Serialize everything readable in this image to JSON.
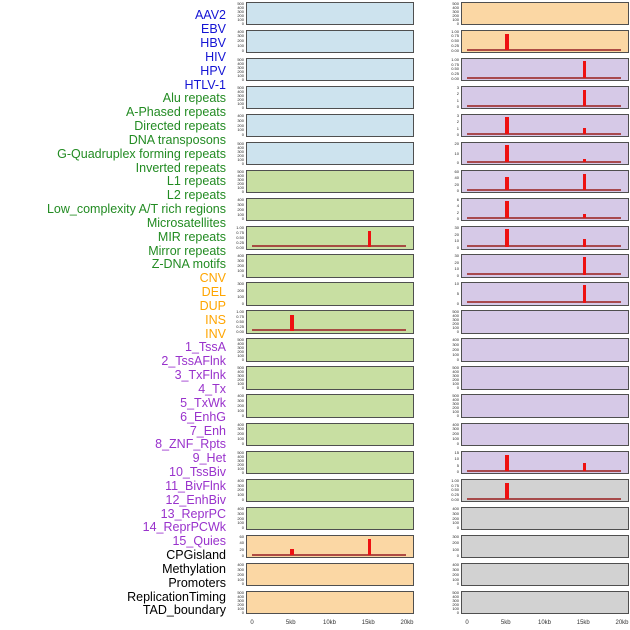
{
  "palette": {
    "label_blue": "#1414d4",
    "label_green": "#228B22",
    "label_orange": "#FFA500",
    "label_purple": "#9932CC",
    "label_black": "#000000",
    "panel_blue": "#cde3ee",
    "panel_green": "#c8dfa2",
    "panel_orange": "#fbd7a4",
    "panel_purple": "#d6c9e7",
    "panel_gray": "#d2d2d2",
    "spike_red": "#ee1111",
    "baseline_red": "#a03333",
    "border_gray": "#4f4f4f"
  },
  "chart_data": {
    "type": "area",
    "description": "Grid of 44 mini genomic density panels (2 columns x 22 rows), each spanning 0-20kb; red peaks mark enrichment at ~5kb and ~15kb",
    "x_ticks": [
      "0",
      "5kb",
      "10kb",
      "15kb",
      "20kb"
    ],
    "x_tick_kb": [
      0,
      5,
      10,
      15,
      20
    ],
    "x_range_kb": [
      0,
      20
    ],
    "row_labels": [
      {
        "text": "AAV2",
        "color": "blue"
      },
      {
        "text": "EBV",
        "color": "blue"
      },
      {
        "text": "HBV",
        "color": "blue"
      },
      {
        "text": "HIV",
        "color": "blue"
      },
      {
        "text": "HPV",
        "color": "blue"
      },
      {
        "text": "HTLV-1",
        "color": "blue"
      },
      {
        "text": "Alu repeats",
        "color": "green"
      },
      {
        "text": "A-Phased repeats",
        "color": "green"
      },
      {
        "text": "Directed repeats",
        "color": "green"
      },
      {
        "text": "DNA transposons",
        "color": "green"
      },
      {
        "text": "G-Quadruplex forming repeats",
        "color": "green"
      },
      {
        "text": "Inverted repeats",
        "color": "green"
      },
      {
        "text": "L1 repeats",
        "color": "green"
      },
      {
        "text": "L2 repeats",
        "color": "green"
      },
      {
        "text": "Low_complexity A/T rich regions",
        "color": "green"
      },
      {
        "text": "Microsatellites",
        "color": "green"
      },
      {
        "text": "MIR repeats",
        "color": "green"
      },
      {
        "text": "Mirror repeats",
        "color": "green"
      },
      {
        "text": "Z-DNA motifs",
        "color": "green"
      },
      {
        "text": "CNV",
        "color": "orange"
      },
      {
        "text": "DEL",
        "color": "orange"
      },
      {
        "text": "DUP",
        "color": "orange"
      },
      {
        "text": "INS",
        "color": "orange"
      },
      {
        "text": "INV",
        "color": "orange"
      },
      {
        "text": "1_TssA",
        "color": "purple"
      },
      {
        "text": "2_TssAFlnk",
        "color": "purple"
      },
      {
        "text": "3_TxFlnk",
        "color": "purple"
      },
      {
        "text": "4_Tx",
        "color": "purple"
      },
      {
        "text": "5_TxWk",
        "color": "purple"
      },
      {
        "text": "6_EnhG",
        "color": "purple"
      },
      {
        "text": "7_Enh",
        "color": "purple"
      },
      {
        "text": "8_ZNF_Rpts",
        "color": "purple"
      },
      {
        "text": "9_Het",
        "color": "purple"
      },
      {
        "text": "10_TssBiv",
        "color": "purple"
      },
      {
        "text": "11_BivFlnk",
        "color": "purple"
      },
      {
        "text": "12_EnhBiv",
        "color": "purple"
      },
      {
        "text": "13_ReprPC",
        "color": "purple"
      },
      {
        "text": "14_ReprPCWk",
        "color": "purple"
      },
      {
        "text": "15_Quies",
        "color": "purple"
      },
      {
        "text": "CPGisland",
        "color": "black"
      },
      {
        "text": "Methylation",
        "color": "black"
      },
      {
        "text": "Promoters",
        "color": "black"
      },
      {
        "text": "ReplicationTiming",
        "color": "black"
      },
      {
        "text": "TAD_boundary",
        "color": "black"
      }
    ],
    "columns": [
      {
        "name": "left-panel-column",
        "panels": [
          {
            "bg": "blue",
            "yticks": [
              "500",
              "400",
              "300",
              "200",
              "100",
              "0"
            ],
            "spikes": [],
            "baseline": false
          },
          {
            "bg": "blue",
            "yticks": [
              "400",
              "300",
              "200",
              "100",
              "0"
            ],
            "spikes": [],
            "baseline": false
          },
          {
            "bg": "blue",
            "yticks": [
              "500",
              "400",
              "300",
              "200",
              "100",
              "0"
            ],
            "spikes": [],
            "baseline": false
          },
          {
            "bg": "blue",
            "yticks": [
              "500",
              "400",
              "300",
              "200",
              "100",
              "0"
            ],
            "spikes": [],
            "baseline": false
          },
          {
            "bg": "blue",
            "yticks": [
              "400",
              "300",
              "200",
              "100",
              "0"
            ],
            "spikes": [],
            "baseline": false
          },
          {
            "bg": "blue",
            "yticks": [
              "500",
              "400",
              "300",
              "200",
              "100",
              "0"
            ],
            "spikes": [],
            "baseline": false
          },
          {
            "bg": "green",
            "yticks": [
              "500",
              "400",
              "300",
              "200",
              "100",
              "0"
            ],
            "spikes": [],
            "baseline": false
          },
          {
            "bg": "green",
            "yticks": [
              "400",
              "300",
              "200",
              "100",
              "0"
            ],
            "spikes": [],
            "baseline": false
          },
          {
            "bg": "green",
            "yticks": [
              "1.00",
              "0.75",
              "0.50",
              "0.25",
              "0.00"
            ],
            "spikes": [
              {
                "kb": 15,
                "h": 0.84
              }
            ],
            "baseline": true
          },
          {
            "bg": "green",
            "yticks": [
              "400",
              "300",
              "200",
              "100",
              "0"
            ],
            "spikes": [],
            "baseline": false
          },
          {
            "bg": "green",
            "yticks": [
              "300",
              "200",
              "100",
              "0"
            ],
            "spikes": [],
            "baseline": false
          },
          {
            "bg": "green",
            "yticks": [
              "1.00",
              "0.75",
              "0.50",
              "0.25",
              "0.00"
            ],
            "spikes": [
              {
                "kb": 5,
                "h": 0.84
              }
            ],
            "baseline": true
          },
          {
            "bg": "green",
            "yticks": [
              "500",
              "400",
              "300",
              "200",
              "100",
              "0"
            ],
            "spikes": [],
            "baseline": false
          },
          {
            "bg": "green",
            "yticks": [
              "500",
              "400",
              "300",
              "200",
              "100",
              "0"
            ],
            "spikes": [],
            "baseline": false
          },
          {
            "bg": "green",
            "yticks": [
              "400",
              "300",
              "200",
              "100",
              "0"
            ],
            "spikes": [],
            "baseline": false
          },
          {
            "bg": "green",
            "yticks": [
              "400",
              "300",
              "200",
              "100",
              "0"
            ],
            "spikes": [],
            "baseline": false
          },
          {
            "bg": "green",
            "yticks": [
              "500",
              "400",
              "300",
              "200",
              "100",
              "0"
            ],
            "spikes": [],
            "baseline": false
          },
          {
            "bg": "green",
            "yticks": [
              "400",
              "300",
              "200",
              "100",
              "0"
            ],
            "spikes": [],
            "baseline": false
          },
          {
            "bg": "green",
            "yticks": [
              "400",
              "300",
              "200",
              "100",
              "0"
            ],
            "spikes": [],
            "baseline": false
          },
          {
            "bg": "orange",
            "yticks": [
              "60",
              "40",
              "20",
              "0"
            ],
            "spikes": [
              {
                "kb": 5,
                "h": 0.36
              },
              {
                "kb": 15,
                "h": 0.9
              }
            ],
            "baseline": true
          },
          {
            "bg": "orange",
            "yticks": [
              "400",
              "300",
              "200",
              "100",
              "0"
            ],
            "spikes": [],
            "baseline": false
          },
          {
            "bg": "orange",
            "yticks": [
              "500",
              "400",
              "300",
              "200",
              "100",
              "0"
            ],
            "spikes": [],
            "baseline": false
          }
        ]
      },
      {
        "name": "right-panel-column",
        "panels": [
          {
            "bg": "orange",
            "yticks": [
              "500",
              "400",
              "300",
              "200",
              "100",
              "0"
            ],
            "spikes": [],
            "baseline": false
          },
          {
            "bg": "orange",
            "yticks": [
              "1.00",
              "0.75",
              "0.50",
              "0.25",
              "0.00"
            ],
            "spikes": [
              {
                "kb": 5,
                "h": 0.88
              }
            ],
            "baseline": true
          },
          {
            "bg": "purple",
            "yticks": [
              "1.00",
              "0.75",
              "0.50",
              "0.25",
              "0.00"
            ],
            "spikes": [
              {
                "kb": 15,
                "h": 0.9
              }
            ],
            "baseline": true
          },
          {
            "bg": "purple",
            "yticks": [
              "3",
              "2",
              "1",
              "0"
            ],
            "spikes": [
              {
                "kb": 15,
                "h": 0.9
              }
            ],
            "baseline": true
          },
          {
            "bg": "purple",
            "yticks": [
              "3",
              "2",
              "1",
              "0"
            ],
            "spikes": [
              {
                "kb": 5,
                "h": 0.93
              },
              {
                "kb": 15,
                "h": 0.33
              }
            ],
            "baseline": true
          },
          {
            "bg": "purple",
            "yticks": [
              "20",
              "10",
              "0"
            ],
            "spikes": [
              {
                "kb": 5,
                "h": 0.93
              },
              {
                "kb": 15,
                "h": 0.18
              }
            ],
            "baseline": true
          },
          {
            "bg": "purple",
            "yticks": [
              "60",
              "40",
              "20",
              "0"
            ],
            "spikes": [
              {
                "kb": 5,
                "h": 0.72
              },
              {
                "kb": 15,
                "h": 0.9
              }
            ],
            "baseline": true
          },
          {
            "bg": "purple",
            "yticks": [
              "6",
              "4",
              "2",
              "0"
            ],
            "spikes": [
              {
                "kb": 5,
                "h": 0.93
              },
              {
                "kb": 15,
                "h": 0.22
              }
            ],
            "baseline": true
          },
          {
            "bg": "purple",
            "yticks": [
              "30",
              "20",
              "10",
              "0"
            ],
            "spikes": [
              {
                "kb": 5,
                "h": 0.93
              },
              {
                "kb": 15,
                "h": 0.42
              }
            ],
            "baseline": true
          },
          {
            "bg": "purple",
            "yticks": [
              "30",
              "20",
              "10",
              "0"
            ],
            "spikes": [
              {
                "kb": 15,
                "h": 0.93
              }
            ],
            "baseline": true
          },
          {
            "bg": "purple",
            "yticks": [
              "10",
              "5",
              "0"
            ],
            "spikes": [
              {
                "kb": 15,
                "h": 0.93
              }
            ],
            "baseline": true
          },
          {
            "bg": "purple",
            "yticks": [
              "500",
              "400",
              "300",
              "200",
              "100",
              "0"
            ],
            "spikes": [],
            "baseline": false
          },
          {
            "bg": "purple",
            "yticks": [
              "400",
              "300",
              "200",
              "100",
              "0"
            ],
            "spikes": [],
            "baseline": false
          },
          {
            "bg": "purple",
            "yticks": [
              "500",
              "400",
              "300",
              "200",
              "100",
              "0"
            ],
            "spikes": [],
            "baseline": false
          },
          {
            "bg": "purple",
            "yticks": [
              "500",
              "400",
              "300",
              "200",
              "100",
              "0"
            ],
            "spikes": [],
            "baseline": false
          },
          {
            "bg": "purple",
            "yticks": [
              "400",
              "300",
              "200",
              "100",
              "0"
            ],
            "spikes": [],
            "baseline": false
          },
          {
            "bg": "purple",
            "yticks": [
              "15",
              "10",
              "5",
              "0"
            ],
            "spikes": [
              {
                "kb": 5,
                "h": 0.88
              },
              {
                "kb": 15,
                "h": 0.42
              }
            ],
            "baseline": true
          },
          {
            "bg": "gray",
            "yticks": [
              "1.00",
              "0.75",
              "0.50",
              "0.25",
              "0.00"
            ],
            "spikes": [
              {
                "kb": 5,
                "h": 0.88
              }
            ],
            "baseline": true
          },
          {
            "bg": "gray",
            "yticks": [
              "400",
              "300",
              "200",
              "100",
              "0"
            ],
            "spikes": [],
            "baseline": false
          },
          {
            "bg": "gray",
            "yticks": [
              "300",
              "200",
              "100",
              "0"
            ],
            "spikes": [],
            "baseline": false
          },
          {
            "bg": "gray",
            "yticks": [
              "400",
              "300",
              "200",
              "100",
              "0"
            ],
            "spikes": [],
            "baseline": false
          },
          {
            "bg": "gray",
            "yticks": [
              "500",
              "400",
              "300",
              "200",
              "100",
              "0"
            ],
            "spikes": [],
            "baseline": false
          }
        ]
      }
    ]
  }
}
